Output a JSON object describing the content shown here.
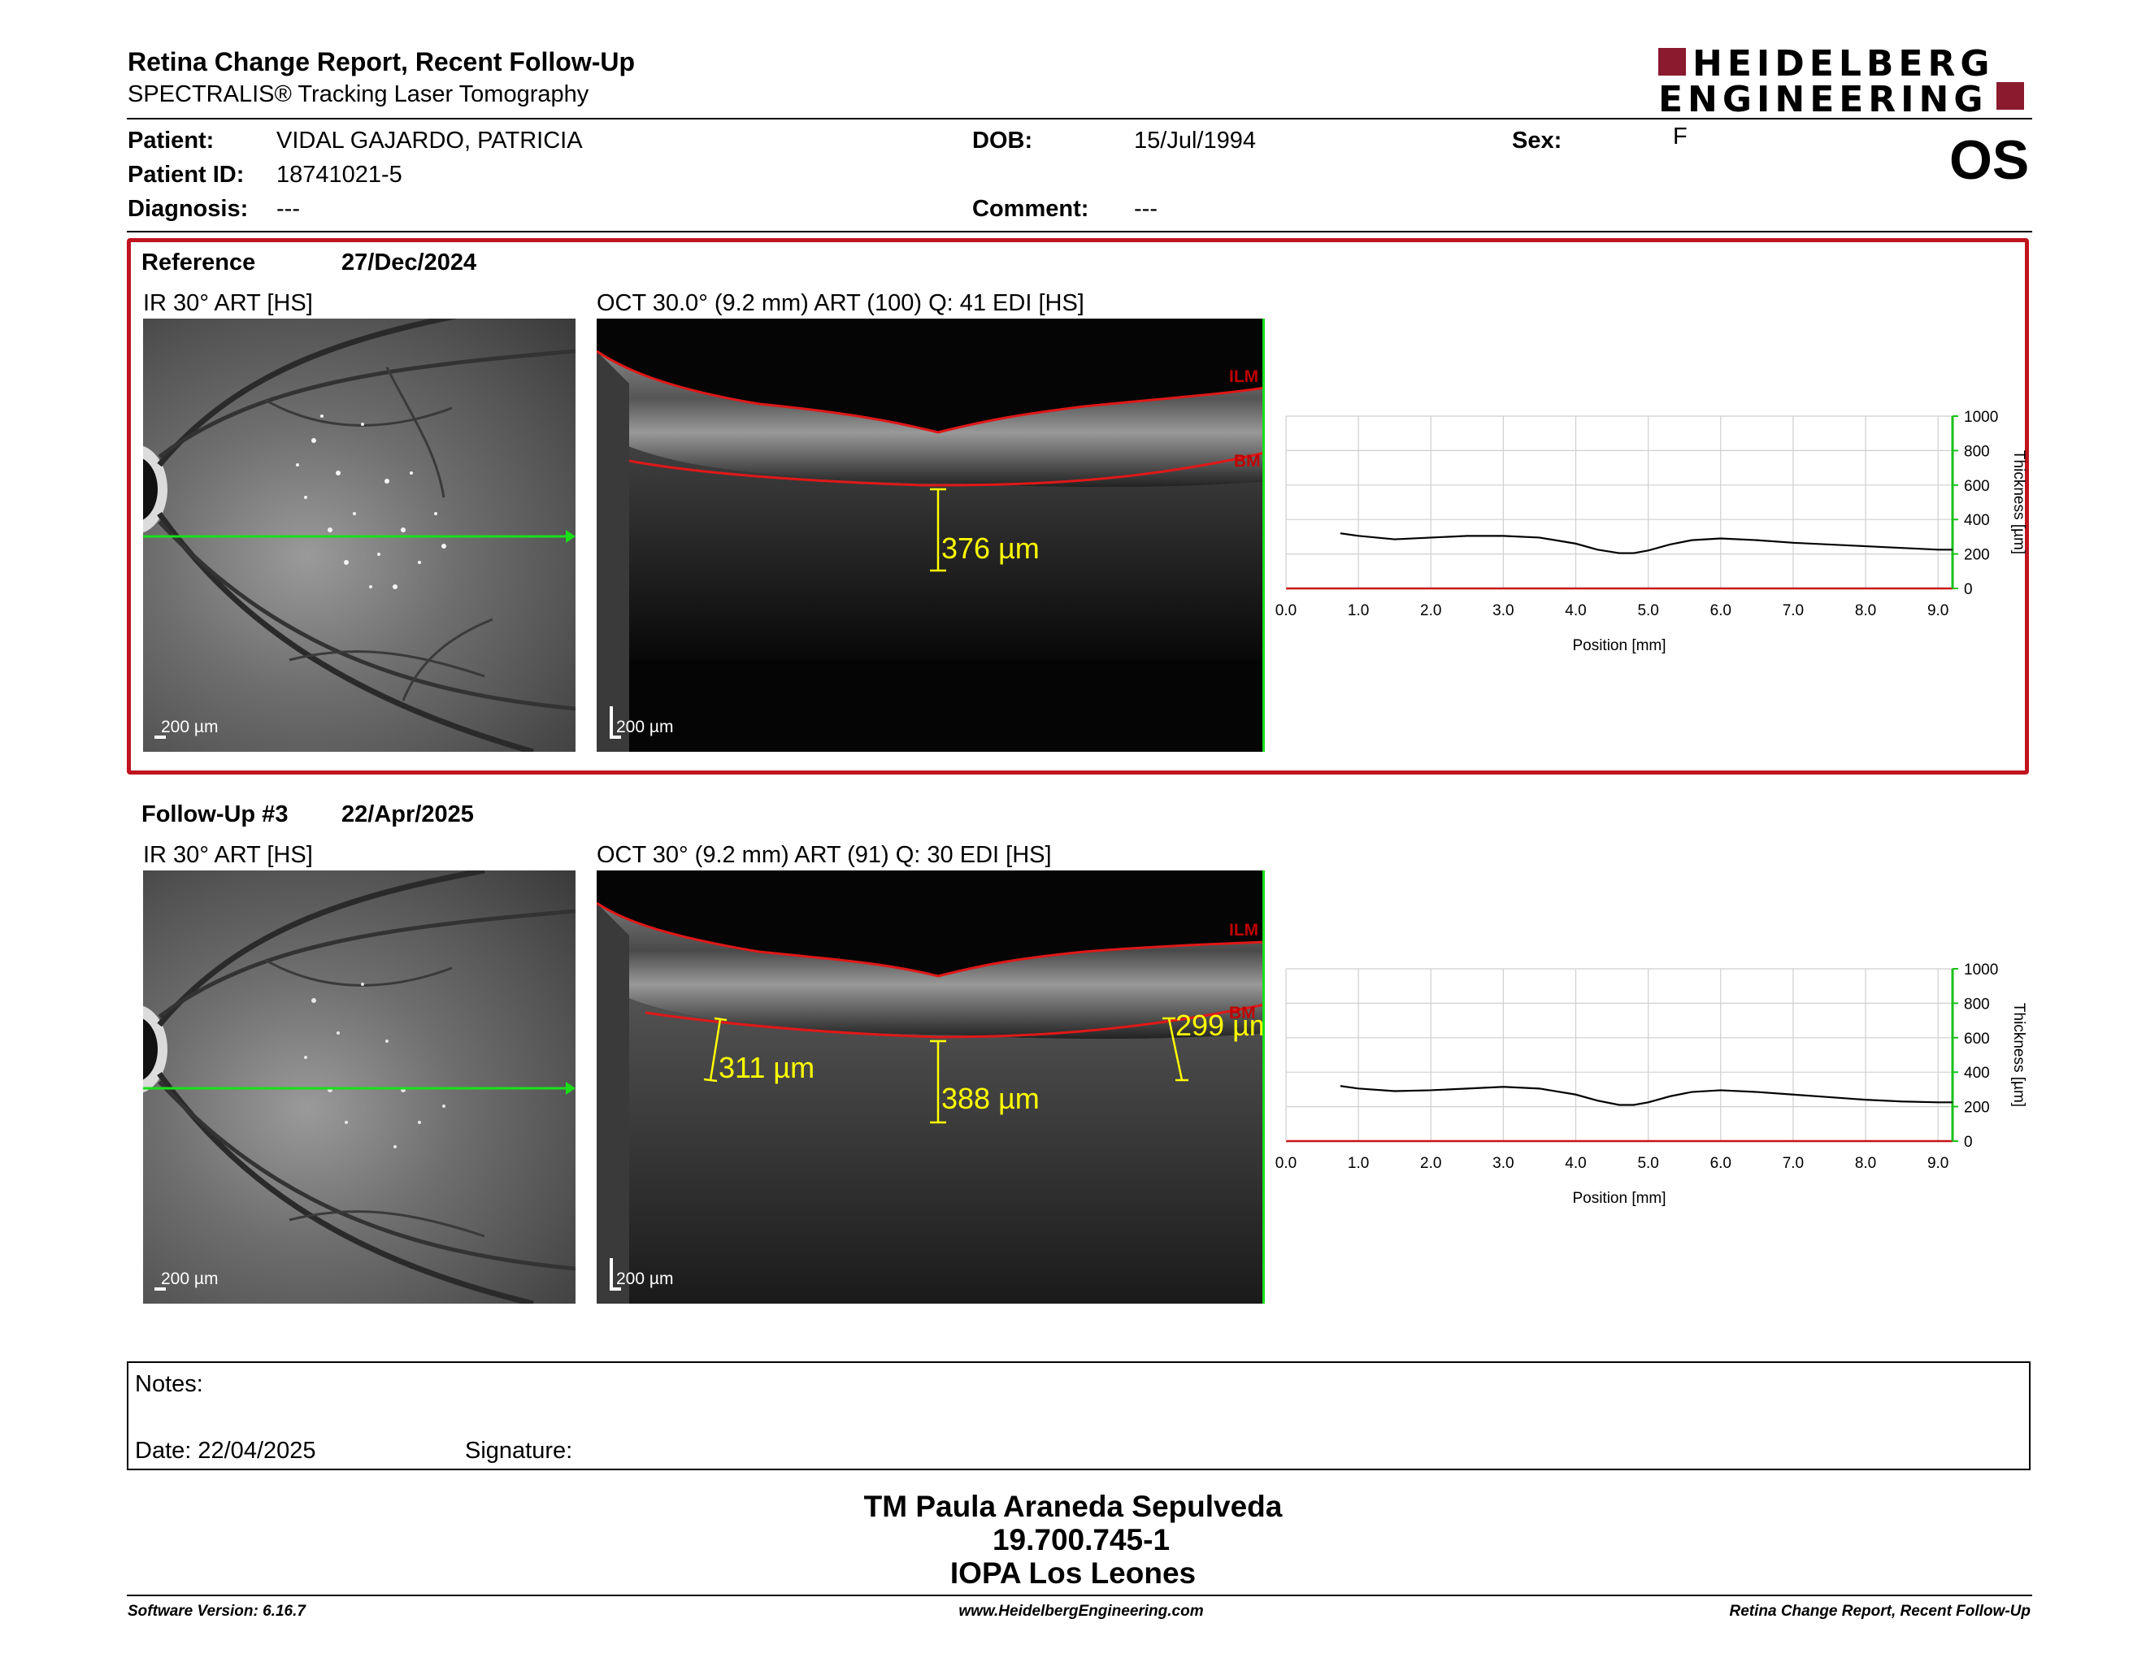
{
  "header": {
    "title": "Retina Change Report, Recent Follow-Up",
    "subtitle": "SPECTRALIS® Tracking Laser Tomography",
    "logo_line1": "HEIDELBERG",
    "logo_line2": "ENGINEERING",
    "eye": "OS"
  },
  "patient": {
    "patient_label": "Patient:",
    "patient_value": "VIDAL GAJARDO, PATRICIA",
    "id_label": "Patient ID:",
    "id_value": "18741021-5",
    "diagnosis_label": "Diagnosis:",
    "diagnosis_value": "---",
    "dob_label": "DOB:",
    "dob_value": "15/Jul/1994",
    "comment_label": "Comment:",
    "comment_value": "---",
    "sex_label": "Sex:",
    "sex_value": "F"
  },
  "reference": {
    "label": "Reference",
    "date": "27/Dec/2024",
    "ir_title": "IR 30° ART [HS]",
    "oct_title": "OCT 30.0° (9.2 mm) ART (100) Q: 41 EDI [HS]",
    "ir_scale": "200 µm",
    "oct_scale": "200 µm",
    "ilm_label": "ILM",
    "bm_label": "BM",
    "measurement": "376 µm"
  },
  "followup": {
    "label": "Follow-Up #3",
    "date": "22/Apr/2025",
    "ir_title": "IR 30° ART [HS]",
    "oct_title": "OCT 30° (9.2 mm) ART (91) Q: 30 EDI [HS]",
    "ir_scale": "200 µm",
    "oct_scale": "200 µm",
    "ilm_label": "ILM",
    "bm_label": "BM",
    "measurement_1": "311 µm",
    "measurement_2": "388 µm",
    "measurement_3": "299 µm"
  },
  "chart_data": [
    {
      "type": "line",
      "xlabel": "Position [mm]",
      "ylabel": "Thickness [µm]",
      "xlim": [
        0,
        9.2
      ],
      "ylim": [
        0,
        1000
      ],
      "x_ticks": [
        "0.0",
        "1.0",
        "2.0",
        "3.0",
        "4.0",
        "5.0",
        "6.0",
        "7.0",
        "8.0",
        "9.0"
      ],
      "y_ticks": [
        "0",
        "200",
        "400",
        "600",
        "800",
        "1000"
      ],
      "grid": true,
      "x": [
        0.75,
        1.0,
        1.5,
        2.0,
        2.5,
        3.0,
        3.5,
        4.0,
        4.3,
        4.6,
        4.8,
        5.0,
        5.3,
        5.6,
        6.0,
        6.5,
        7.0,
        7.5,
        8.0,
        8.5,
        9.0,
        9.2
      ],
      "y": [
        320,
        305,
        285,
        295,
        305,
        305,
        295,
        260,
        225,
        205,
        205,
        220,
        255,
        280,
        290,
        280,
        265,
        255,
        245,
        235,
        225,
        225
      ]
    },
    {
      "type": "line",
      "xlabel": "Position [mm]",
      "ylabel": "Thickness [µm]",
      "xlim": [
        0,
        9.2
      ],
      "ylim": [
        0,
        1000
      ],
      "x_ticks": [
        "0.0",
        "1.0",
        "2.0",
        "3.0",
        "4.0",
        "5.0",
        "6.0",
        "7.0",
        "8.0",
        "9.0"
      ],
      "y_ticks": [
        "0",
        "200",
        "400",
        "600",
        "800",
        "1000"
      ],
      "grid": true,
      "x": [
        0.75,
        1.0,
        1.5,
        2.0,
        2.5,
        3.0,
        3.5,
        4.0,
        4.3,
        4.6,
        4.8,
        5.0,
        5.3,
        5.6,
        6.0,
        6.5,
        7.0,
        7.5,
        8.0,
        8.5,
        9.0,
        9.2
      ],
      "y": [
        320,
        305,
        290,
        295,
        305,
        315,
        305,
        270,
        235,
        210,
        210,
        225,
        260,
        285,
        295,
        285,
        270,
        255,
        240,
        230,
        225,
        225
      ]
    }
  ],
  "notes": {
    "notes_label": "Notes:",
    "date_label": "Date: 22/04/2025",
    "signature_label": "Signature:"
  },
  "signer": {
    "name": "TM Paula Araneda Sepulveda",
    "id": "19.700.745-1",
    "org": "IOPA Los Leones"
  },
  "footer": {
    "software": "Software Version: 6.16.7",
    "website": "www.HeidelbergEngineering.com",
    "report": "Retina Change Report, Recent Follow-Up"
  }
}
